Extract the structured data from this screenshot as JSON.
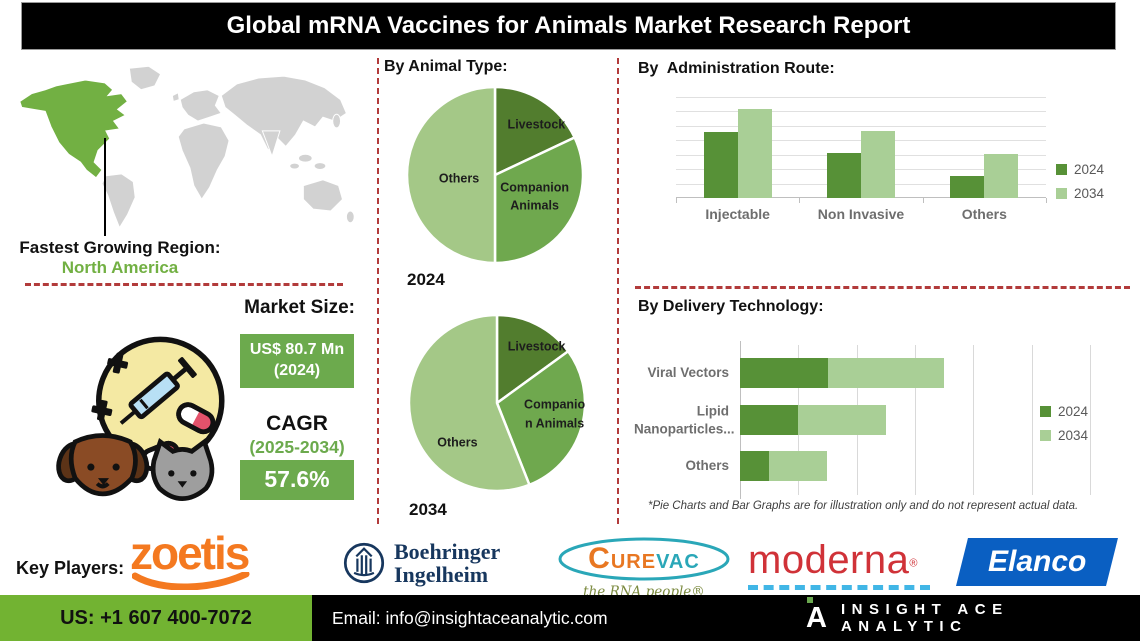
{
  "title": "Global mRNA Vaccines for Animals Market Research Report",
  "left_panel": {
    "region_heading": "Fastest Growing Region:",
    "region_value": "North America",
    "market_size_heading": "Market Size:",
    "market_size_value": "US$ 80.7 Mn\n(2024)",
    "cagr_label": "CAGR",
    "cagr_period": "(2025-2034)",
    "cagr_value": "57.6%"
  },
  "chart_data": [
    {
      "id": "pie-2024",
      "type": "pie",
      "section_title": "By Animal Type:",
      "year_label": "2024",
      "slices": [
        {
          "label": "Livestock",
          "value": 18,
          "color": "#527d2e"
        },
        {
          "label": "Companion Animals",
          "value": 32,
          "color": "#6fa84e"
        },
        {
          "label": "Others",
          "value": 50,
          "color": "#a4c887"
        }
      ],
      "labels": [
        {
          "text": "Livestock",
          "x": 0.73,
          "y": 0.22
        },
        {
          "text": "Companion\nAnimals",
          "x": 0.72,
          "y": 0.62
        },
        {
          "text": "Others",
          "x": 0.3,
          "y": 0.52
        }
      ]
    },
    {
      "id": "pie-2034",
      "type": "pie",
      "section_title": "By Animal Type:",
      "year_label": "2034",
      "slices": [
        {
          "label": "Livestock",
          "value": 15,
          "color": "#527d2e"
        },
        {
          "label": "Companion Animals",
          "value": 29,
          "color": "#6fa84e"
        },
        {
          "label": "Others",
          "value": 56,
          "color": "#a4c887"
        }
      ],
      "labels": [
        {
          "text": "Livestock",
          "x": 0.72,
          "y": 0.19
        },
        {
          "text": "Companio\nn Animals",
          "x": 0.82,
          "y": 0.56
        },
        {
          "text": "Others",
          "x": 0.28,
          "y": 0.72
        }
      ]
    },
    {
      "id": "administration-route",
      "type": "grouped_bar",
      "section_title": "By  Administration Route:",
      "categories": [
        "Injectable",
        "Non Invasive",
        "Others"
      ],
      "series": [
        {
          "name": "2024",
          "color": "#579137",
          "values": [
            65,
            45,
            22
          ]
        },
        {
          "name": "2034",
          "color": "#a9cf96",
          "values": [
            88,
            66,
            44
          ]
        }
      ],
      "ylim": [
        0,
        100
      ],
      "grid": true,
      "legend_position": "right"
    },
    {
      "id": "delivery-technology",
      "type": "stacked_hbar",
      "section_title": "By Delivery Technology:",
      "categories": [
        "Viral Vectors",
        "Lipid\nNanoparticles...",
        "Others"
      ],
      "series": [
        {
          "name": "2024",
          "color": "#579137",
          "values": [
            15,
            10,
            5
          ]
        },
        {
          "name": "2034",
          "color": "#a9cf96",
          "values": [
            20,
            15,
            10
          ]
        }
      ],
      "xlim": [
        0,
        60
      ],
      "grid": true,
      "legend_position": "right"
    }
  ],
  "footnote": "*Pie Charts and Bar Graphs are for illustration only and do not represent actual data.",
  "key_players": {
    "label": "Key Players:",
    "zoetis_text": "zoetis",
    "boehringer_line1": "Boehringer",
    "boehringer_line2": "Ingelheim",
    "curevac_c": "C",
    "curevac_mid": "URE",
    "curevac_end": "VAC",
    "curevac_tagline": "the RNA people®",
    "moderna_text": "moderna",
    "moderna_mark": "®",
    "elanco_text": "Elanco"
  },
  "footer": {
    "phone": "US: +1 607 400-7072",
    "email": "Email: info@insightaceanalytic.com",
    "brand": "INSIGHT ACE ANALYTIC"
  },
  "colors": {
    "accent_green": "#6caa4d",
    "map_green": "#72b043",
    "pie_dark_green": "#527d2e",
    "pie_mid_green": "#6fa84e",
    "pie_light_green": "#a4c887",
    "bar_2024_green": "#579137",
    "bar_2034_green": "#a9cf96",
    "dash_red": "#b23b3b",
    "footer_green": "#72b332",
    "title_bg": "#000000",
    "zoetis_orange": "#f47920",
    "boehringer_blue": "#17375e",
    "curevac_teal": "#2aa7b8",
    "curevac_orange": "#e87722",
    "moderna_red": "#d03238",
    "elanco_blue": "#0a5fc2"
  }
}
